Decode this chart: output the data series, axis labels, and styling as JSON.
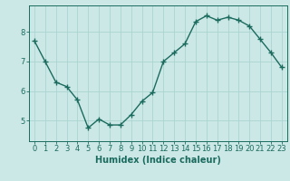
{
  "x": [
    0,
    1,
    2,
    3,
    4,
    5,
    6,
    7,
    8,
    9,
    10,
    11,
    12,
    13,
    14,
    15,
    16,
    17,
    18,
    19,
    20,
    21,
    22,
    23
  ],
  "y": [
    7.7,
    7.0,
    6.3,
    6.15,
    5.7,
    4.75,
    5.05,
    4.85,
    4.85,
    5.2,
    5.65,
    5.95,
    7.0,
    7.3,
    7.6,
    8.35,
    8.55,
    8.4,
    8.5,
    8.4,
    8.2,
    7.75,
    7.3,
    6.8
  ],
  "line_color": "#1a6b5e",
  "marker": "+",
  "marker_size": 4,
  "marker_lw": 1.0,
  "bg_color": "#cce8e6",
  "grid_color": "#aad4d0",
  "xlabel": "Humidex (Indice chaleur)",
  "xlabel_fontsize": 7,
  "tick_fontsize": 6,
  "yticks": [
    5,
    6,
    7,
    8
  ],
  "ylim": [
    4.3,
    8.9
  ],
  "xlim": [
    -0.5,
    23.5
  ],
  "linewidth": 1.0
}
